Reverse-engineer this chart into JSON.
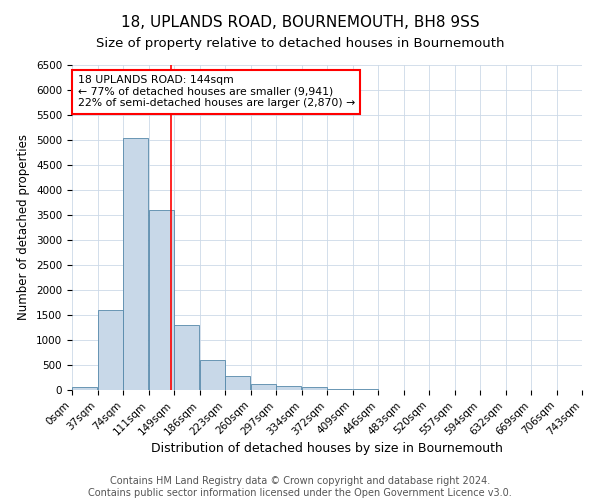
{
  "title": "18, UPLANDS ROAD, BOURNEMOUTH, BH8 9SS",
  "subtitle": "Size of property relative to detached houses in Bournemouth",
  "xlabel": "Distribution of detached houses by size in Bournemouth",
  "ylabel": "Number of detached properties",
  "bin_labels": [
    "0sqm",
    "37sqm",
    "74sqm",
    "111sqm",
    "149sqm",
    "186sqm",
    "223sqm",
    "260sqm",
    "297sqm",
    "334sqm",
    "372sqm",
    "409sqm",
    "446sqm",
    "483sqm",
    "520sqm",
    "557sqm",
    "594sqm",
    "632sqm",
    "669sqm",
    "706sqm",
    "743sqm"
  ],
  "bar_values": [
    60,
    1600,
    5050,
    3600,
    1300,
    600,
    280,
    130,
    90,
    60,
    30,
    15,
    8,
    4,
    2,
    1,
    1,
    0,
    0,
    0
  ],
  "bar_color": "#c8d8e8",
  "bar_edgecolor": "#5588aa",
  "property_line_x": 144,
  "bin_width": 37,
  "ylim": [
    0,
    6500
  ],
  "yticks": [
    0,
    500,
    1000,
    1500,
    2000,
    2500,
    3000,
    3500,
    4000,
    4500,
    5000,
    5500,
    6000,
    6500
  ],
  "annotation_text": "18 UPLANDS ROAD: 144sqm\n← 77% of detached houses are smaller (9,941)\n22% of semi-detached houses are larger (2,870) →",
  "annotation_box_color": "#ff0000",
  "footer1": "Contains HM Land Registry data © Crown copyright and database right 2024.",
  "footer2": "Contains public sector information licensed under the Open Government Licence v3.0.",
  "bg_color": "#ffffff",
  "grid_color": "#ccd9e8",
  "title_fontsize": 11,
  "subtitle_fontsize": 9.5,
  "xlabel_fontsize": 9,
  "ylabel_fontsize": 8.5,
  "tick_fontsize": 7.5,
  "footer_fontsize": 7
}
